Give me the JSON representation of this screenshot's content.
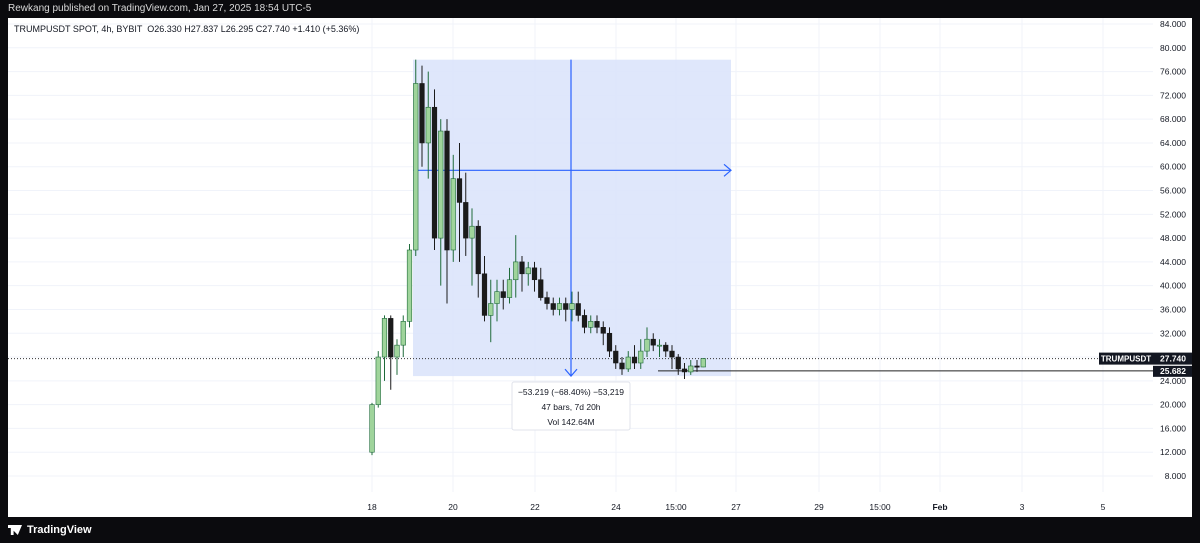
{
  "header": {
    "published": "Rewkang published on TradingView.com, Jan 27, 2025 18:54 UTC-5"
  },
  "legend": {
    "symbol": "TRUMPUSDT SPOT, 4h, BYBIT",
    "ohlc": "O26.330 H27.837 L26.295 C27.740 +1.410 (+5.36%)"
  },
  "footer": {
    "brand": "TradingView",
    "logo_icon": "tradingview-logo-icon"
  },
  "measure": {
    "line1": "−53.219 (−68.40%) −53,219",
    "line2": "47 bars, 7d 20h",
    "line3": "Vol 142.64M"
  },
  "price_tags": [
    {
      "label": "TRUMPUSDT",
      "value": "27.740"
    },
    {
      "label": "",
      "value": "25.682"
    }
  ],
  "colors": {
    "up": "#22ab94",
    "up_fill": "#9fd49b",
    "down": "#1b1b1b",
    "measure_fill": "#dbe4fb",
    "measure_line": "#2962ff"
  },
  "chart_data": {
    "type": "candlestick",
    "y_ticks": [
      "84.000",
      "80.000",
      "76.000",
      "72.000",
      "68.000",
      "64.000",
      "60.000",
      "56.000",
      "52.000",
      "48.000",
      "44.000",
      "40.000",
      "36.000",
      "32.000",
      "28.000",
      "24.000",
      "20.000",
      "16.000",
      "12.000",
      "8.000"
    ],
    "x_ticks": [
      "18",
      "20",
      "22",
      "24",
      "15:00",
      "27",
      "29",
      "15:00",
      "Feb",
      "3",
      "5"
    ],
    "ylim": [
      4,
      86
    ],
    "last_price": 27.74,
    "horizontal_line": 25.682,
    "measure_range": {
      "top": 78,
      "bottom": 24.8
    },
    "candles": [
      [
        12.0,
        20.0,
        11.5,
        20.3
      ],
      [
        20.0,
        28.0,
        19.5,
        29.0
      ],
      [
        28.0,
        34.5,
        24.0,
        35.0
      ],
      [
        34.5,
        28.0,
        22.5,
        35.0
      ],
      [
        28.0,
        30.0,
        25.0,
        31.0
      ],
      [
        30.0,
        34.0,
        28.0,
        35.0
      ],
      [
        34.0,
        46.0,
        33.0,
        47.0
      ],
      [
        46.0,
        74.0,
        45.0,
        78.0
      ],
      [
        74.0,
        64.0,
        60.0,
        77.0
      ],
      [
        64.0,
        70.0,
        58.0,
        76.0
      ],
      [
        70.0,
        48.0,
        46.0,
        73.0
      ],
      [
        48.0,
        66.0,
        40.0,
        68.0
      ],
      [
        66.0,
        46.0,
        37.0,
        68.0
      ],
      [
        46.0,
        58.0,
        44.0,
        62.0
      ],
      [
        58.0,
        54.0,
        44.0,
        64.0
      ],
      [
        54.0,
        48.0,
        45.0,
        59.0
      ],
      [
        48.0,
        50.0,
        40.0,
        53.0
      ],
      [
        50.0,
        42.0,
        38.0,
        51.0
      ],
      [
        42.0,
        35.0,
        34.0,
        45.0
      ],
      [
        35.0,
        37.0,
        30.5,
        41.0
      ],
      [
        37.0,
        39.0,
        34.0,
        41.0
      ],
      [
        39.0,
        38.0,
        36.0,
        41.0
      ],
      [
        38.0,
        41.0,
        37.0,
        43.0
      ],
      [
        41.0,
        44.0,
        38.0,
        48.5
      ],
      [
        44.0,
        42.0,
        39.0,
        45.0
      ],
      [
        42.0,
        43.0,
        40.0,
        44.0
      ],
      [
        43.0,
        41.0,
        39.0,
        44.0
      ],
      [
        41.0,
        38.0,
        37.5,
        43.0
      ],
      [
        38.0,
        37.0,
        36.0,
        39.0
      ],
      [
        37.0,
        36.0,
        35.0,
        38.0
      ],
      [
        36.0,
        37.0,
        35.0,
        38.0
      ],
      [
        37.0,
        36.0,
        34.0,
        38.0
      ],
      [
        36.0,
        37.0,
        34.0,
        39.0
      ],
      [
        37.0,
        35.0,
        34.0,
        39.0
      ],
      [
        35.0,
        33.0,
        32.0,
        36.0
      ],
      [
        33.0,
        34.0,
        32.0,
        35.0
      ],
      [
        34.0,
        33.0,
        32.0,
        35.0
      ],
      [
        33.0,
        32.0,
        30.0,
        34.0
      ],
      [
        32.0,
        29.0,
        28.0,
        33.0
      ],
      [
        29.0,
        27.0,
        26.0,
        30.0
      ],
      [
        27.0,
        26.0,
        25.0,
        28.0
      ],
      [
        26.0,
        28.0,
        25.5,
        29.0
      ],
      [
        28.0,
        27.0,
        26.0,
        30.0
      ],
      [
        27.0,
        29.0,
        26.0,
        31.0
      ],
      [
        29.0,
        31.0,
        28.0,
        33.0
      ],
      [
        31.0,
        30.0,
        29.0,
        32.0
      ],
      [
        30.0,
        30.0,
        28.0,
        31.0
      ],
      [
        30.0,
        29.0,
        28.0,
        30.5
      ],
      [
        29.0,
        28.0,
        26.0,
        30.0
      ],
      [
        28.0,
        26.0,
        25.0,
        28.5
      ],
      [
        26.0,
        25.5,
        24.3,
        27.0
      ],
      [
        25.5,
        26.5,
        25.0,
        27.5
      ],
      [
        26.5,
        26.3,
        25.5,
        27.5
      ],
      [
        26.33,
        27.74,
        26.295,
        27.837
      ]
    ]
  }
}
